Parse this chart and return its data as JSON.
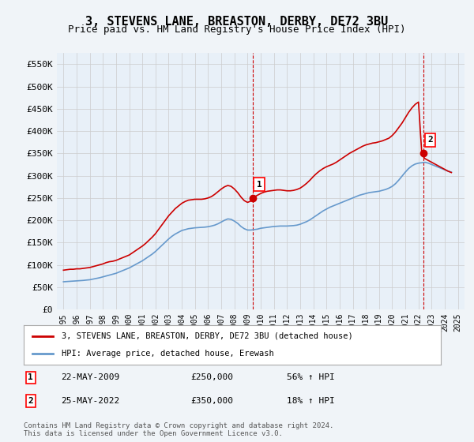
{
  "title": "3, STEVENS LANE, BREASTON, DERBY, DE72 3BU",
  "subtitle": "Price paid vs. HM Land Registry's House Price Index (HPI)",
  "title_fontsize": 11,
  "subtitle_fontsize": 9,
  "red_label": "3, STEVENS LANE, BREASTON, DERBY, DE72 3BU (detached house)",
  "blue_label": "HPI: Average price, detached house, Erewash",
  "marker1_x": 2009.38,
  "marker1_y": 250000,
  "marker1_label": "1",
  "marker1_text": "22-MAY-2009",
  "marker1_price": "£250,000",
  "marker1_hpi": "56% ↑ HPI",
  "marker2_x": 2022.38,
  "marker2_y": 350000,
  "marker2_label": "2",
  "marker2_text": "25-MAY-2022",
  "marker2_price": "£350,000",
  "marker2_hpi": "18% ↑ HPI",
  "ylim": [
    0,
    575000
  ],
  "yticks": [
    0,
    50000,
    100000,
    150000,
    200000,
    250000,
    300000,
    350000,
    400000,
    450000,
    500000,
    550000
  ],
  "ytick_labels": [
    "£0",
    "£50K",
    "£100K",
    "£150K",
    "£200K",
    "£250K",
    "£300K",
    "£350K",
    "£400K",
    "£450K",
    "£500K",
    "£550K"
  ],
  "xlim": [
    1994.5,
    2025.5
  ],
  "xticks": [
    1995,
    1996,
    1997,
    1998,
    1999,
    2000,
    2001,
    2002,
    2003,
    2004,
    2005,
    2006,
    2007,
    2008,
    2009,
    2010,
    2011,
    2012,
    2013,
    2014,
    2015,
    2016,
    2017,
    2018,
    2019,
    2020,
    2021,
    2022,
    2023,
    2024,
    2025
  ],
  "red_color": "#cc0000",
  "blue_color": "#6699cc",
  "grid_color": "#cccccc",
  "bg_color": "#e8f0f8",
  "plot_bg": "#ffffff",
  "footnote": "Contains HM Land Registry data © Crown copyright and database right 2024.\nThis data is licensed under the Open Government Licence v3.0.",
  "red_x": [
    1995.0,
    1995.25,
    1995.5,
    1995.75,
    1996.0,
    1996.25,
    1996.5,
    1996.75,
    1997.0,
    1997.25,
    1997.5,
    1997.75,
    1998.0,
    1998.25,
    1998.5,
    1998.75,
    1999.0,
    1999.25,
    1999.5,
    1999.75,
    2000.0,
    2000.25,
    2000.5,
    2000.75,
    2001.0,
    2001.25,
    2001.5,
    2001.75,
    2002.0,
    2002.25,
    2002.5,
    2002.75,
    2003.0,
    2003.25,
    2003.5,
    2003.75,
    2004.0,
    2004.25,
    2004.5,
    2004.75,
    2005.0,
    2005.25,
    2005.5,
    2005.75,
    2006.0,
    2006.25,
    2006.5,
    2006.75,
    2007.0,
    2007.25,
    2007.5,
    2007.75,
    2008.0,
    2008.25,
    2008.5,
    2008.75,
    2009.0,
    2009.25,
    2009.38,
    2009.5,
    2009.75,
    2010.0,
    2010.25,
    2010.5,
    2010.75,
    2011.0,
    2011.25,
    2011.5,
    2011.75,
    2012.0,
    2012.25,
    2012.5,
    2012.75,
    2013.0,
    2013.25,
    2013.5,
    2013.75,
    2014.0,
    2014.25,
    2014.5,
    2014.75,
    2015.0,
    2015.25,
    2015.5,
    2015.75,
    2016.0,
    2016.25,
    2016.5,
    2016.75,
    2017.0,
    2017.25,
    2017.5,
    2017.75,
    2018.0,
    2018.25,
    2018.5,
    2018.75,
    2019.0,
    2019.25,
    2019.5,
    2019.75,
    2020.0,
    2020.25,
    2020.5,
    2020.75,
    2021.0,
    2021.25,
    2021.5,
    2021.75,
    2022.0,
    2022.25,
    2022.38,
    2022.5,
    2022.75,
    2023.0,
    2023.25,
    2023.5,
    2023.75,
    2024.0,
    2024.25,
    2024.5
  ],
  "red_y": [
    88000,
    89000,
    90000,
    90000,
    91000,
    91000,
    92000,
    93000,
    94000,
    96000,
    98000,
    100000,
    102000,
    105000,
    107000,
    108000,
    110000,
    113000,
    116000,
    119000,
    122000,
    127000,
    132000,
    137000,
    142000,
    148000,
    155000,
    162000,
    170000,
    180000,
    190000,
    200000,
    210000,
    218000,
    226000,
    232000,
    238000,
    242000,
    245000,
    246000,
    247000,
    247000,
    247000,
    248000,
    250000,
    253000,
    258000,
    264000,
    270000,
    275000,
    278000,
    276000,
    270000,
    262000,
    252000,
    244000,
    240000,
    243000,
    250000,
    252000,
    256000,
    260000,
    263000,
    265000,
    266000,
    267000,
    268000,
    268000,
    267000,
    266000,
    266000,
    267000,
    269000,
    272000,
    277000,
    283000,
    290000,
    298000,
    305000,
    311000,
    316000,
    320000,
    323000,
    326000,
    330000,
    335000,
    340000,
    345000,
    350000,
    354000,
    358000,
    362000,
    366000,
    369000,
    371000,
    373000,
    374000,
    376000,
    378000,
    381000,
    384000,
    390000,
    398000,
    408000,
    418000,
    430000,
    442000,
    452000,
    460000,
    465000,
    350000,
    342000,
    338000,
    334000,
    330000,
    326000,
    322000,
    318000,
    314000,
    310000,
    307000
  ],
  "blue_x": [
    1995.0,
    1995.25,
    1995.5,
    1995.75,
    1996.0,
    1996.25,
    1996.5,
    1996.75,
    1997.0,
    1997.25,
    1997.5,
    1997.75,
    1998.0,
    1998.25,
    1998.5,
    1998.75,
    1999.0,
    1999.25,
    1999.5,
    1999.75,
    2000.0,
    2000.25,
    2000.5,
    2000.75,
    2001.0,
    2001.25,
    2001.5,
    2001.75,
    2002.0,
    2002.25,
    2002.5,
    2002.75,
    2003.0,
    2003.25,
    2003.5,
    2003.75,
    2004.0,
    2004.25,
    2004.5,
    2004.75,
    2005.0,
    2005.25,
    2005.5,
    2005.75,
    2006.0,
    2006.25,
    2006.5,
    2006.75,
    2007.0,
    2007.25,
    2007.5,
    2007.75,
    2008.0,
    2008.25,
    2008.5,
    2008.75,
    2009.0,
    2009.25,
    2009.5,
    2009.75,
    2010.0,
    2010.25,
    2010.5,
    2010.75,
    2011.0,
    2011.25,
    2011.5,
    2011.75,
    2012.0,
    2012.25,
    2012.5,
    2012.75,
    2013.0,
    2013.25,
    2013.5,
    2013.75,
    2014.0,
    2014.25,
    2014.5,
    2014.75,
    2015.0,
    2015.25,
    2015.5,
    2015.75,
    2016.0,
    2016.25,
    2016.5,
    2016.75,
    2017.0,
    2017.25,
    2017.5,
    2017.75,
    2018.0,
    2018.25,
    2018.5,
    2018.75,
    2019.0,
    2019.25,
    2019.5,
    2019.75,
    2020.0,
    2020.25,
    2020.5,
    2020.75,
    2021.0,
    2021.25,
    2021.5,
    2021.75,
    2022.0,
    2022.25,
    2022.5,
    2022.75,
    2023.0,
    2023.25,
    2023.5,
    2023.75,
    2024.0,
    2024.25,
    2024.5
  ],
  "blue_y": [
    62000,
    62500,
    63000,
    63500,
    64000,
    64500,
    65000,
    65800,
    66500,
    68000,
    69500,
    71000,
    73000,
    75000,
    77000,
    79000,
    81000,
    84000,
    87000,
    90000,
    93000,
    97000,
    101000,
    105000,
    109000,
    114000,
    119000,
    124000,
    130000,
    137000,
    144000,
    151000,
    158000,
    164000,
    169000,
    173000,
    177000,
    179000,
    181000,
    182000,
    183000,
    183500,
    184000,
    184500,
    185500,
    187000,
    189000,
    192000,
    196000,
    200000,
    203000,
    202000,
    198000,
    193000,
    186000,
    181000,
    178000,
    178000,
    179000,
    180000,
    182000,
    183000,
    184000,
    185000,
    186000,
    186500,
    187000,
    187000,
    187000,
    187500,
    188000,
    189000,
    191000,
    194000,
    197000,
    201000,
    206000,
    211000,
    216000,
    221000,
    225000,
    229000,
    232000,
    235000,
    238000,
    241000,
    244000,
    247000,
    250000,
    253000,
    256000,
    258000,
    260000,
    262000,
    263000,
    264000,
    265000,
    267000,
    269000,
    272000,
    276000,
    282000,
    290000,
    299000,
    308000,
    316000,
    322000,
    326000,
    328000,
    329000,
    330000,
    328000,
    325000,
    322000,
    319000,
    316000,
    313000,
    310000,
    308000
  ]
}
